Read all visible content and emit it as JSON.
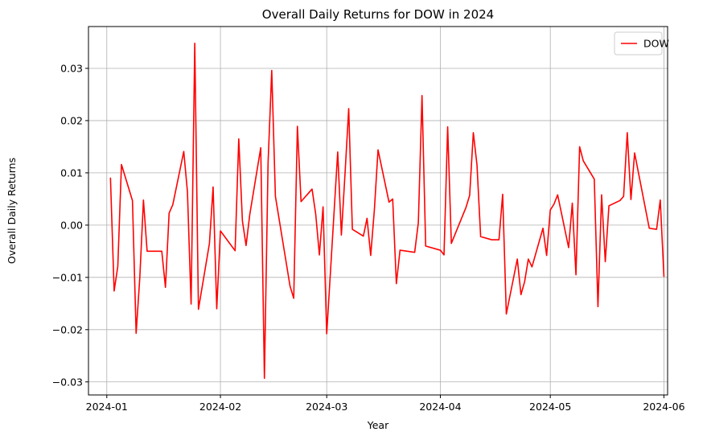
{
  "chart_data": {
    "type": "line",
    "title": "Overall Daily Returns for DOW in 2024",
    "xlabel": "Year",
    "ylabel": "Overall Daily Returns",
    "x_type": "date",
    "xlim": [
      "2023-12-27",
      "2024-06-02"
    ],
    "ylim": [
      -0.0325,
      0.038
    ],
    "x_ticks": [
      "2024-01-01",
      "2024-02-01",
      "2024-03-01",
      "2024-04-01",
      "2024-05-01",
      "2024-06-01"
    ],
    "x_tick_labels": [
      "2024-01",
      "2024-02",
      "2024-03",
      "2024-04",
      "2024-05",
      "2024-06"
    ],
    "y_ticks": [
      -0.03,
      -0.02,
      -0.01,
      0.0,
      0.01,
      0.02,
      0.03
    ],
    "y_tick_labels": [
      "−0.03",
      "−0.02",
      "−0.01",
      "0.00",
      "0.01",
      "0.02",
      "0.03"
    ],
    "grid": true,
    "legend": {
      "position": "top-right"
    },
    "series": [
      {
        "name": "DOW",
        "color": "#ff0000",
        "points": [
          {
            "x": "2024-01-02",
            "y": 0.009
          },
          {
            "x": "2024-01-03",
            "y": -0.0126
          },
          {
            "x": "2024-01-04",
            "y": -0.0079
          },
          {
            "x": "2024-01-05",
            "y": 0.0116
          },
          {
            "x": "2024-01-08",
            "y": 0.0047
          },
          {
            "x": "2024-01-09",
            "y": -0.0207
          },
          {
            "x": "2024-01-10",
            "y": -0.0101
          },
          {
            "x": "2024-01-11",
            "y": 0.0048
          },
          {
            "x": "2024-01-12",
            "y": -0.005
          },
          {
            "x": "2024-01-16",
            "y": -0.005
          },
          {
            "x": "2024-01-17",
            "y": -0.0119
          },
          {
            "x": "2024-01-18",
            "y": 0.0023
          },
          {
            "x": "2024-01-19",
            "y": 0.0039
          },
          {
            "x": "2024-01-22",
            "y": 0.0141
          },
          {
            "x": "2024-01-23",
            "y": 0.0064
          },
          {
            "x": "2024-01-24",
            "y": -0.0151
          },
          {
            "x": "2024-01-25",
            "y": 0.0348
          },
          {
            "x": "2024-01-26",
            "y": -0.0161
          },
          {
            "x": "2024-01-29",
            "y": -0.0035
          },
          {
            "x": "2024-01-30",
            "y": 0.0073
          },
          {
            "x": "2024-01-31",
            "y": -0.016
          },
          {
            "x": "2024-02-01",
            "y": -0.0011
          },
          {
            "x": "2024-02-05",
            "y": -0.0049
          },
          {
            "x": "2024-02-06",
            "y": 0.0165
          },
          {
            "x": "2024-02-07",
            "y": 0.0008
          },
          {
            "x": "2024-02-08",
            "y": -0.0039
          },
          {
            "x": "2024-02-09",
            "y": 0.002
          },
          {
            "x": "2024-02-12",
            "y": 0.0148
          },
          {
            "x": "2024-02-13",
            "y": -0.0293
          },
          {
            "x": "2024-02-14",
            "y": 0.0119
          },
          {
            "x": "2024-02-15",
            "y": 0.0296
          },
          {
            "x": "2024-02-16",
            "y": 0.0055
          },
          {
            "x": "2024-02-20",
            "y": -0.0117
          },
          {
            "x": "2024-02-21",
            "y": -0.014
          },
          {
            "x": "2024-02-22",
            "y": 0.0189
          },
          {
            "x": "2024-02-23",
            "y": 0.0045
          },
          {
            "x": "2024-02-26",
            "y": 0.0069
          },
          {
            "x": "2024-02-27",
            "y": 0.0021
          },
          {
            "x": "2024-02-28",
            "y": -0.0057
          },
          {
            "x": "2024-02-29",
            "y": 0.0035
          },
          {
            "x": "2024-03-01",
            "y": -0.0208
          },
          {
            "x": "2024-03-04",
            "y": 0.014
          },
          {
            "x": "2024-03-05",
            "y": -0.0019
          },
          {
            "x": "2024-03-06",
            "y": 0.0099
          },
          {
            "x": "2024-03-07",
            "y": 0.0223
          },
          {
            "x": "2024-03-08",
            "y": -0.0008
          },
          {
            "x": "2024-03-11",
            "y": -0.0021
          },
          {
            "x": "2024-03-12",
            "y": 0.0013
          },
          {
            "x": "2024-03-13",
            "y": -0.0058
          },
          {
            "x": "2024-03-14",
            "y": 0.0029
          },
          {
            "x": "2024-03-15",
            "y": 0.0144
          },
          {
            "x": "2024-03-18",
            "y": 0.0044
          },
          {
            "x": "2024-03-19",
            "y": 0.005
          },
          {
            "x": "2024-03-20",
            "y": -0.0112
          },
          {
            "x": "2024-03-21",
            "y": -0.0048
          },
          {
            "x": "2024-03-22",
            "y": -0.0049
          },
          {
            "x": "2024-03-25",
            "y": -0.0052
          },
          {
            "x": "2024-03-26",
            "y": 0.0005
          },
          {
            "x": "2024-03-27",
            "y": 0.0248
          },
          {
            "x": "2024-03-28",
            "y": -0.004
          },
          {
            "x": "2024-04-01",
            "y": -0.0048
          },
          {
            "x": "2024-04-02",
            "y": -0.0057
          },
          {
            "x": "2024-04-03",
            "y": 0.0188
          },
          {
            "x": "2024-04-04",
            "y": -0.0035
          },
          {
            "x": "2024-04-08",
            "y": 0.0034
          },
          {
            "x": "2024-04-09",
            "y": 0.0057
          },
          {
            "x": "2024-04-10",
            "y": 0.0177
          },
          {
            "x": "2024-04-11",
            "y": 0.0115
          },
          {
            "x": "2024-04-12",
            "y": -0.0022
          },
          {
            "x": "2024-04-15",
            "y": -0.0028
          },
          {
            "x": "2024-04-16",
            "y": -0.0028
          },
          {
            "x": "2024-04-17",
            "y": -0.0028
          },
          {
            "x": "2024-04-18",
            "y": 0.0059
          },
          {
            "x": "2024-04-19",
            "y": -0.017
          },
          {
            "x": "2024-04-22",
            "y": -0.0065
          },
          {
            "x": "2024-04-23",
            "y": -0.0133
          },
          {
            "x": "2024-04-24",
            "y": -0.0108
          },
          {
            "x": "2024-04-25",
            "y": -0.0065
          },
          {
            "x": "2024-04-26",
            "y": -0.008
          },
          {
            "x": "2024-04-29",
            "y": -0.0006
          },
          {
            "x": "2024-04-30",
            "y": -0.0058
          },
          {
            "x": "2024-05-01",
            "y": 0.0029
          },
          {
            "x": "2024-05-02",
            "y": 0.004
          },
          {
            "x": "2024-05-03",
            "y": 0.0058
          },
          {
            "x": "2024-05-06",
            "y": -0.0043
          },
          {
            "x": "2024-05-07",
            "y": 0.0042
          },
          {
            "x": "2024-05-08",
            "y": -0.0095
          },
          {
            "x": "2024-05-09",
            "y": 0.015
          },
          {
            "x": "2024-05-10",
            "y": 0.0123
          },
          {
            "x": "2024-05-13",
            "y": 0.0088
          },
          {
            "x": "2024-05-14",
            "y": -0.0156
          },
          {
            "x": "2024-05-15",
            "y": 0.0058
          },
          {
            "x": "2024-05-16",
            "y": -0.007
          },
          {
            "x": "2024-05-17",
            "y": 0.0037
          },
          {
            "x": "2024-05-20",
            "y": 0.0047
          },
          {
            "x": "2024-05-21",
            "y": 0.0055
          },
          {
            "x": "2024-05-22",
            "y": 0.0177
          },
          {
            "x": "2024-05-23",
            "y": 0.0049
          },
          {
            "x": "2024-05-24",
            "y": 0.0138
          },
          {
            "x": "2024-05-28",
            "y": -0.0006
          },
          {
            "x": "2024-05-29",
            "y": -0.0007
          },
          {
            "x": "2024-05-30",
            "y": -0.0008
          },
          {
            "x": "2024-05-31",
            "y": 0.0048
          },
          {
            "x": "2024-06-01",
            "y": -0.0098
          }
        ]
      }
    ]
  }
}
